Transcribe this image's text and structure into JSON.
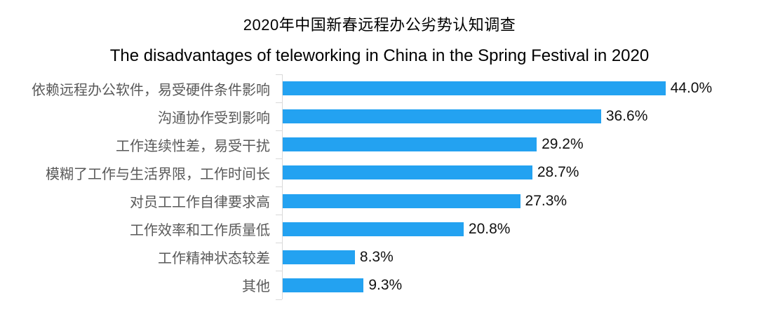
{
  "title": {
    "zh": "2020年中国新春远程办公劣势认知调查",
    "en": "The disadvantages of teleworking in China in the Spring Festival in 2020"
  },
  "chart_data": {
    "type": "bar",
    "orientation": "horizontal",
    "title": "2020年中国新春远程办公劣势认知调查",
    "subtitle": "The disadvantages of teleworking in China in the Spring Festival in 2020",
    "categories": [
      "依赖远程办公软件，易受硬件条件影响",
      "沟通协作受到影响",
      "工作连续性差，易受干扰",
      "模糊了工作与生活界限，工作时间长",
      "对员工工作自律要求高",
      "工作效率和工作质量低",
      "工作精神状态较差",
      "其他"
    ],
    "values": [
      44.0,
      36.6,
      29.2,
      28.7,
      27.3,
      20.8,
      8.3,
      9.3
    ],
    "value_labels": [
      "44.0%",
      "36.6%",
      "29.2%",
      "28.7%",
      "27.3%",
      "20.8%",
      "8.3%",
      "9.3%"
    ],
    "unit": "%",
    "xlim": [
      0,
      50
    ],
    "grid": false,
    "legend": false,
    "value_labels_position": "right-of-bar"
  },
  "colors": {
    "bar": "#23a2f1",
    "axis": "#d9d9d9",
    "category_label": "#595959",
    "value_label": "#111111",
    "title": "#000000",
    "background": "#ffffff"
  }
}
